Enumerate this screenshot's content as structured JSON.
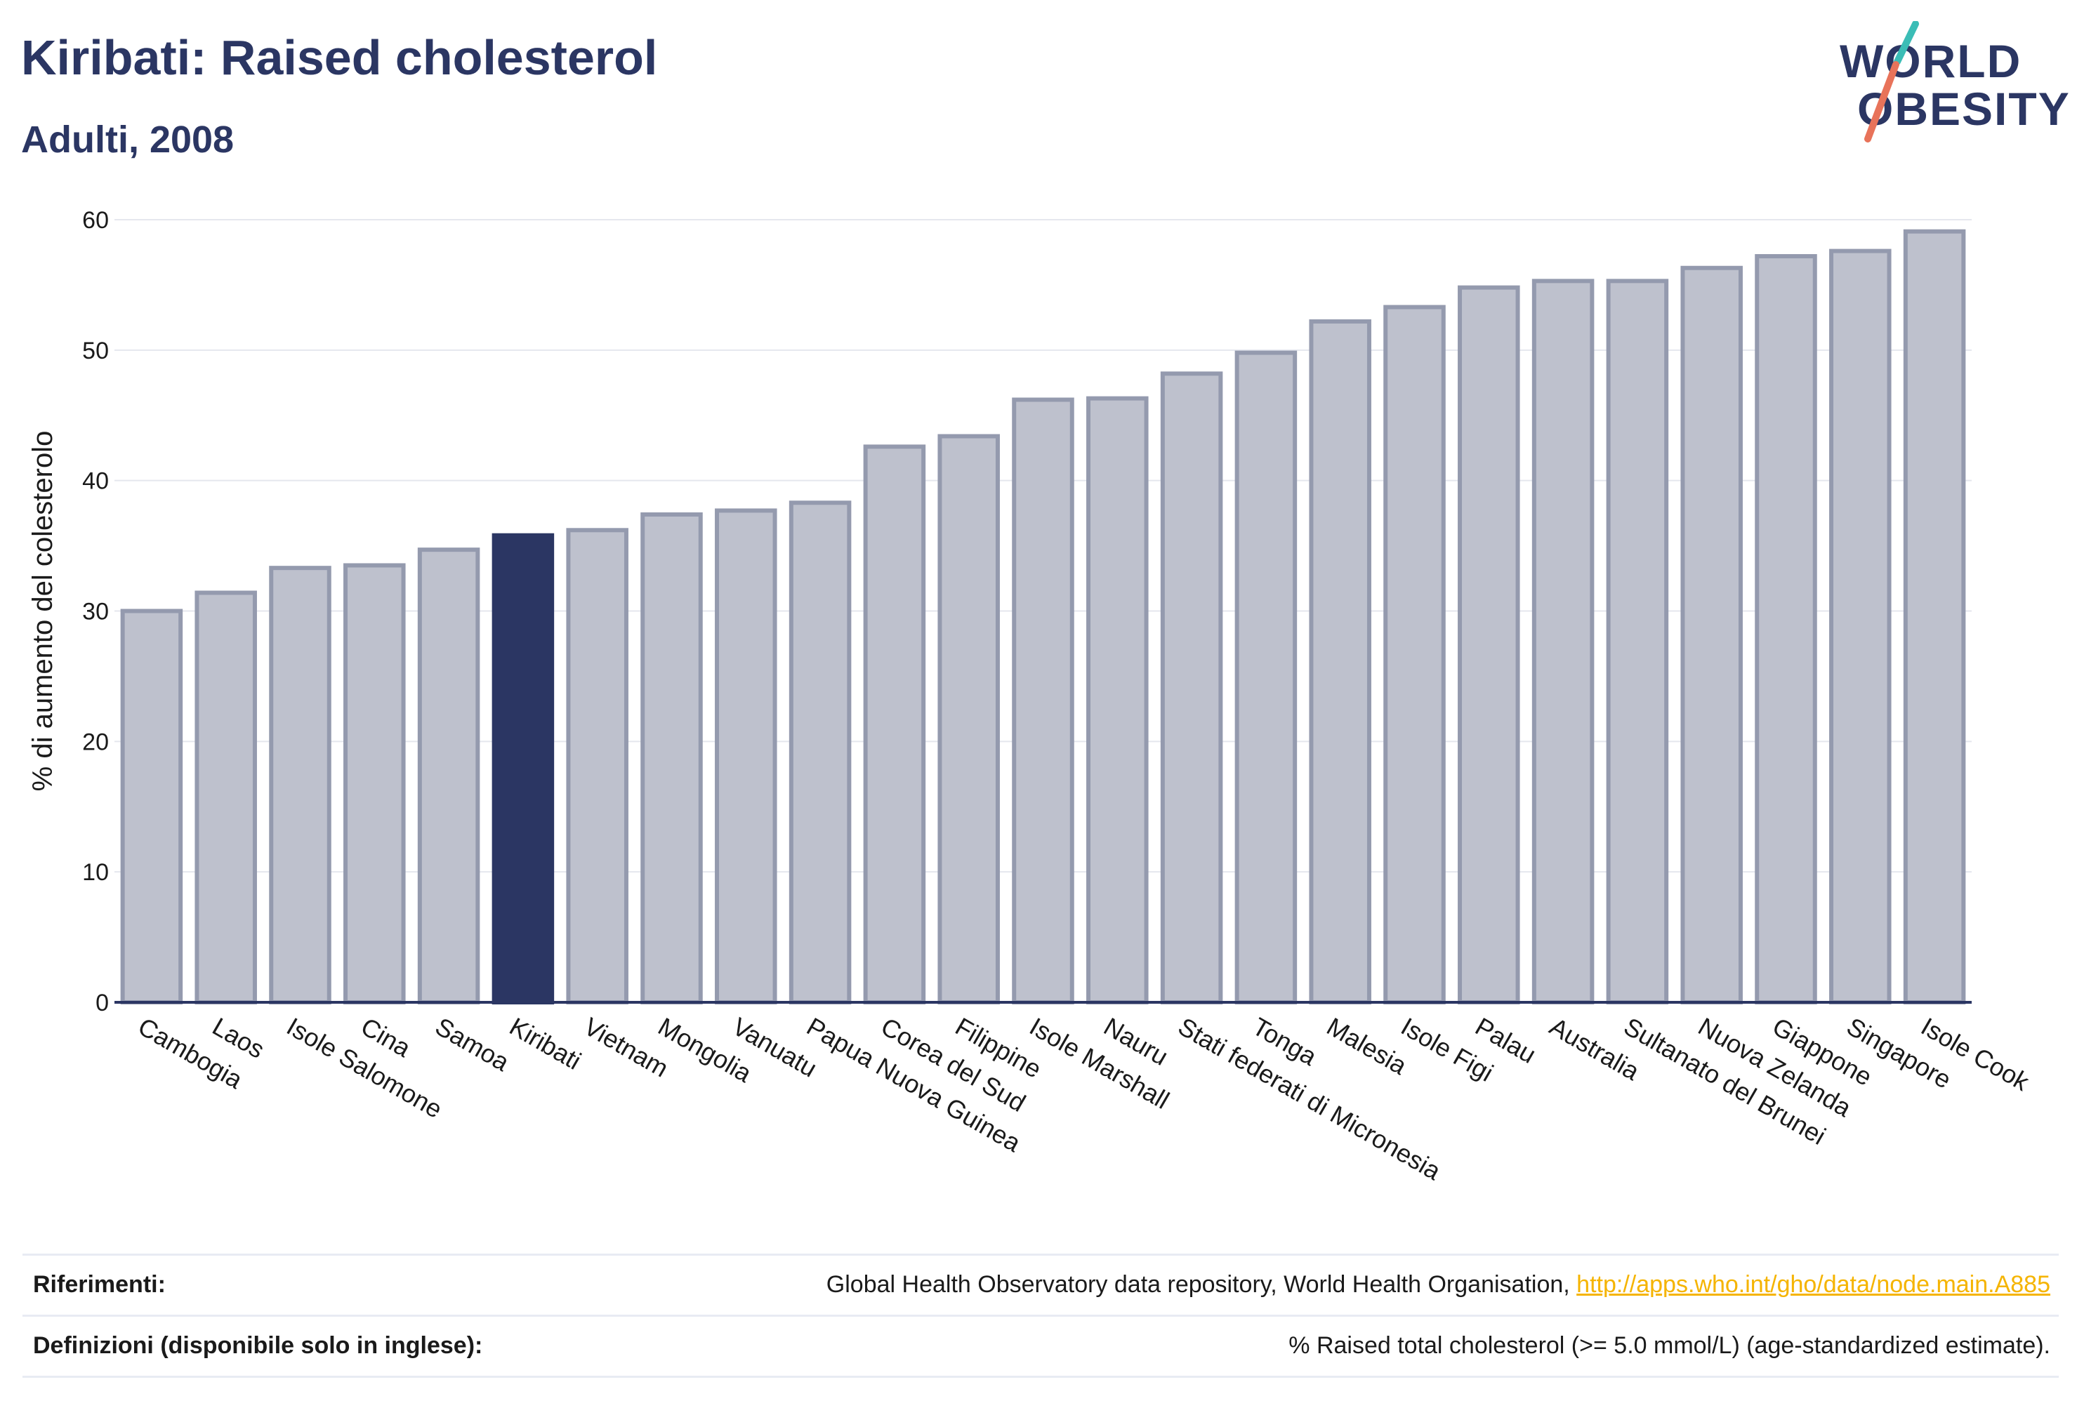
{
  "header": {
    "title": "Kiribati: Raised cholesterol",
    "subtitle": "Adulti, 2008"
  },
  "logo": {
    "line1": "WORLD",
    "line2": "OBESITY",
    "colors": {
      "text": "#2b3663",
      "slash_teal": "#3bbdb6",
      "slash_coral": "#e8735a"
    }
  },
  "chart_data": {
    "type": "bar",
    "ylabel": "% di aumento del colesterolo",
    "ylim": [
      0,
      60
    ],
    "yticks": [
      0,
      10,
      20,
      30,
      40,
      50,
      60
    ],
    "grid": true,
    "highlight": "Kiribati",
    "colors": {
      "bar": "#bec1cd",
      "bar_edge": "#949aae",
      "highlight": "#2b3663",
      "grid": "#e5e7ee",
      "axis": "#2b3663"
    },
    "categories": [
      "Cambogia",
      "Laos",
      "Isole Salomone",
      "Cina",
      "Samoa",
      "Kiribati",
      "Vietnam",
      "Mongolia",
      "Vanuatu",
      "Papua Nuova Guinea",
      "Corea del Sud",
      "Filippine",
      "Isole Marshall",
      "Nauru",
      "Stati federati di Micronesia",
      "Tonga",
      "Malesia",
      "Isole Figi",
      "Palau",
      "Australia",
      "Sultanato del Brunei",
      "Nuova Zelanda",
      "Giappone",
      "Singapore",
      "Isole Cook"
    ],
    "values": [
      30.0,
      31.4,
      33.3,
      33.5,
      34.7,
      35.8,
      36.2,
      37.4,
      37.7,
      38.3,
      42.6,
      43.4,
      46.2,
      46.3,
      48.2,
      49.8,
      52.2,
      53.3,
      54.8,
      55.3,
      55.3,
      56.3,
      57.2,
      57.6,
      59.1
    ]
  },
  "footer": {
    "references_label": "Riferimenti:",
    "references_text": "Global Health Observatory data repository, World Health Organisation, ",
    "references_link": "http://apps.who.int/gho/data/node.main.A885",
    "definitions_label": "Definizioni (disponibile solo in inglese):",
    "definitions_text": "% Raised total cholesterol (>= 5.0 mmol/L) (age-standardized estimate)."
  }
}
